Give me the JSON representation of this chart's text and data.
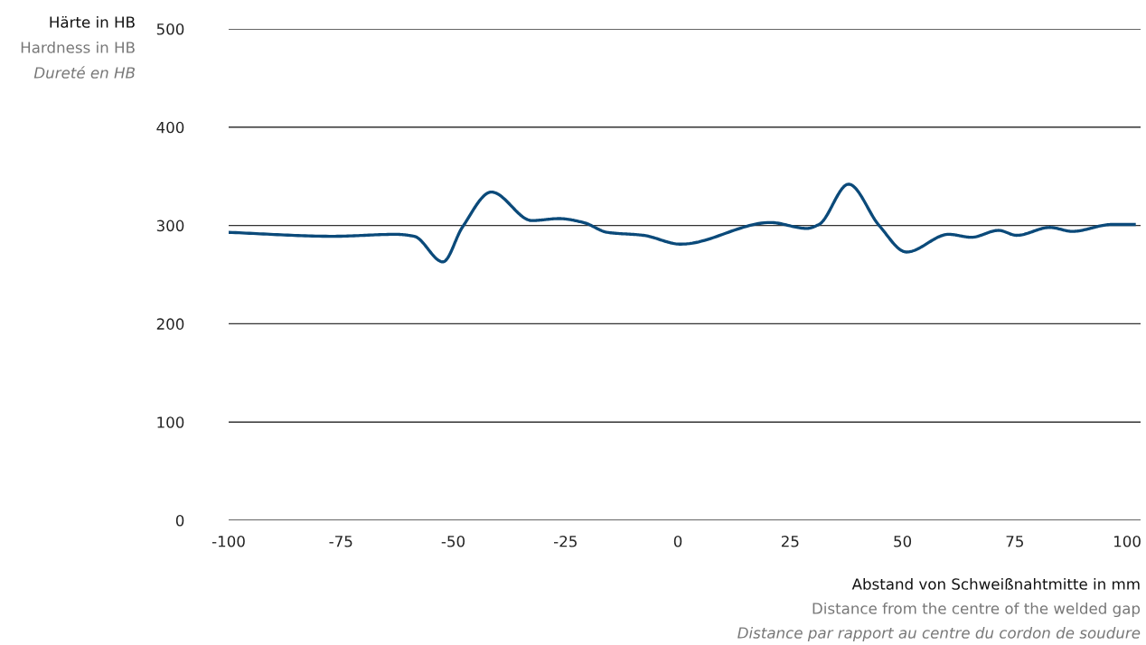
{
  "chart_data": {
    "type": "line",
    "xlabel": "Abstand von Schweißnahtmitte in mm\nDistance from the centre of the welded gap\nDistance par rapport au centre du cordon de soudure",
    "ylabel": "Härte in HB\nHardness in HB\nDureté en HB",
    "x": [
      -100,
      -76.8,
      -62.7,
      -58.7,
      -52.3,
      -48,
      -41.5,
      -32.5,
      -26.4,
      -21,
      -15.7,
      -7.7,
      0.6,
      20.6,
      28.7,
      31.4,
      38,
      44.8,
      50.9,
      60.3,
      65.3,
      71.4,
      75.4,
      82.8,
      87.8,
      96.6,
      101.6
    ],
    "series": [
      {
        "color": "#0b4a7a",
        "values": [
          293,
          289,
          291,
          289,
          263,
          298,
          334,
          305,
          307,
          303,
          293,
          290,
          281,
          303,
          297,
          301,
          342,
          300,
          273,
          291,
          288,
          295,
          290,
          298,
          294,
          301,
          301
        ]
      }
    ],
    "xlim": [
      -100,
      103
    ],
    "ylim": [
      0,
      500
    ],
    "xticks": [
      -100,
      -75,
      -50,
      -25,
      0,
      25,
      50,
      75,
      100
    ],
    "yticks": [
      0,
      100,
      200,
      300,
      400,
      500
    ],
    "grid": "y",
    "marker": "none",
    "line_style": "solid"
  }
}
